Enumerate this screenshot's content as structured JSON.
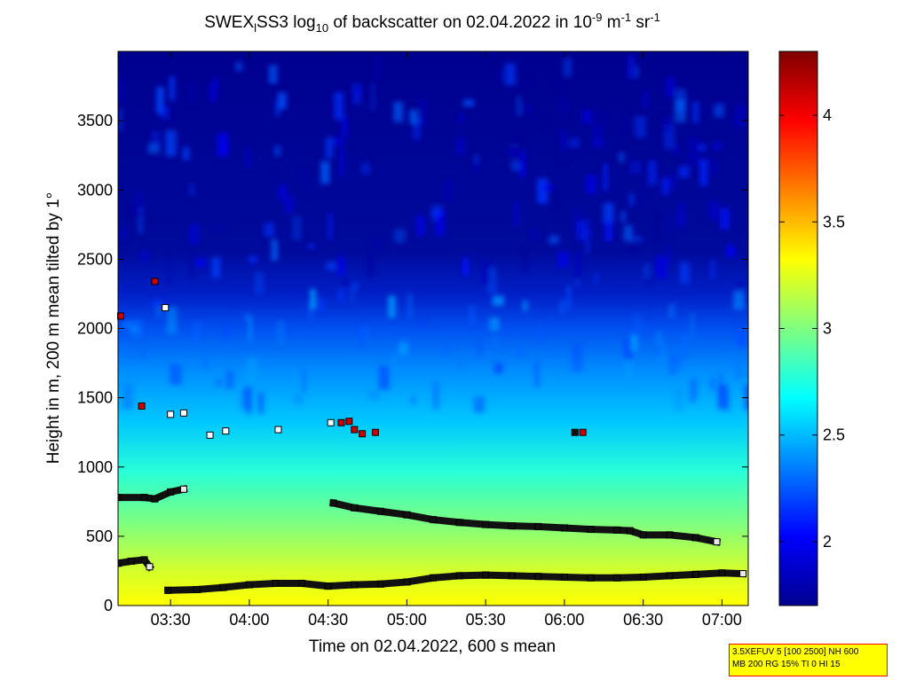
{
  "chart_data": {
    "type": "heatmap",
    "title": {
      "prefix": "SWEX",
      "sub1": "l",
      "mid1": "SS3 log",
      "sub2": "10",
      "mid2": " of backscatter on 02.04.2022 in 10",
      "sup1": "-9",
      "mid3": " m",
      "sup2": "-1",
      "mid4": " sr",
      "sup3": "-1"
    },
    "xlabel": "Time on 02.04.2022, 600 s mean",
    "ylabel": "Height in m, 200 m mean tilted by 1°",
    "xlim": [
      "03:10",
      "07:10"
    ],
    "ylim": [
      0,
      4000
    ],
    "x_ticks": [
      "03:30",
      "04:00",
      "04:30",
      "05:00",
      "05:30",
      "06:00",
      "06:30",
      "07:00"
    ],
    "y_ticks": [
      "0",
      "500",
      "1000",
      "1500",
      "2000",
      "2500",
      "3000",
      "3500"
    ],
    "colorbar": {
      "range": [
        1.7,
        4.3
      ],
      "ticks": [
        "2",
        "2.5",
        "3",
        "3.5",
        "4"
      ],
      "colormap": "jet"
    },
    "layers": [
      {
        "from": 0,
        "to": 250,
        "value": 3.25
      },
      {
        "from": 250,
        "to": 800,
        "value": 2.95
      },
      {
        "from": 800,
        "to": 1500,
        "value": 2.55
      },
      {
        "from": 1500,
        "to": 2100,
        "value": 2.2
      },
      {
        "from": 2100,
        "to": 4000,
        "value": 1.75
      }
    ],
    "series": [
      {
        "x": [
          "03:10",
          "03:20",
          "03:24",
          "03:30",
          "03:35"
        ],
        "y": [
          780,
          780,
          770,
          820,
          840
        ]
      },
      {
        "x": [
          "03:10",
          "03:15",
          "03:20",
          "03:22"
        ],
        "y": [
          305,
          320,
          330,
          280
        ]
      },
      {
        "x": [
          "03:29",
          "03:40",
          "03:50",
          "04:00",
          "04:10",
          "04:20",
          "04:30",
          "04:40",
          "04:50",
          "05:00",
          "05:10",
          "05:20",
          "05:30",
          "05:40",
          "05:50",
          "06:00",
          "06:10",
          "06:20",
          "06:30",
          "06:40",
          "06:50",
          "07:00",
          "07:08"
        ],
        "y": [
          110,
          115,
          130,
          150,
          160,
          160,
          140,
          150,
          155,
          170,
          200,
          215,
          220,
          215,
          210,
          205,
          200,
          200,
          205,
          215,
          225,
          235,
          230
        ]
      },
      {
        "x": [
          "04:32",
          "04:40",
          "04:50",
          "05:00",
          "05:10",
          "05:20",
          "05:30",
          "05:40",
          "05:50",
          "06:00",
          "06:10",
          "06:20",
          "06:25",
          "06:30",
          "06:40",
          "06:50",
          "06:58"
        ],
        "y": [
          740,
          705,
          680,
          655,
          620,
          600,
          585,
          575,
          570,
          560,
          550,
          545,
          540,
          510,
          510,
          490,
          460
        ]
      }
    ],
    "points": [
      {
        "x": "03:11",
        "y": 2090,
        "color": "#cc0000"
      },
      {
        "x": "03:24",
        "y": 2340,
        "color": "#cc0000"
      },
      {
        "x": "03:28",
        "y": 2150,
        "color": "#ffffff"
      },
      {
        "x": "03:19",
        "y": 1440,
        "color": "#cc0000"
      },
      {
        "x": "03:30",
        "y": 1380,
        "color": "#ffffff"
      },
      {
        "x": "03:35",
        "y": 1390,
        "color": "#ffffff"
      },
      {
        "x": "03:45",
        "y": 1230,
        "color": "#ffffff"
      },
      {
        "x": "03:51",
        "y": 1260,
        "color": "#ffffff"
      },
      {
        "x": "04:11",
        "y": 1270,
        "color": "#ffffff"
      },
      {
        "x": "04:31",
        "y": 1320,
        "color": "#ffffff"
      },
      {
        "x": "04:35",
        "y": 1320,
        "color": "#cc0000"
      },
      {
        "x": "04:38",
        "y": 1330,
        "color": "#cc0000"
      },
      {
        "x": "04:40",
        "y": 1270,
        "color": "#cc0000"
      },
      {
        "x": "04:43",
        "y": 1240,
        "color": "#cc0000"
      },
      {
        "x": "04:48",
        "y": 1250,
        "color": "#cc0000"
      },
      {
        "x": "06:04",
        "y": 1250,
        "color": "#111111"
      },
      {
        "x": "06:07",
        "y": 1250,
        "color": "#cc0000"
      }
    ]
  },
  "info_box": {
    "line1": "3.5XEFUV 5 [100 2500] NH 600",
    "line2": "MB 200 RG 15% TI 0 HI 15"
  }
}
